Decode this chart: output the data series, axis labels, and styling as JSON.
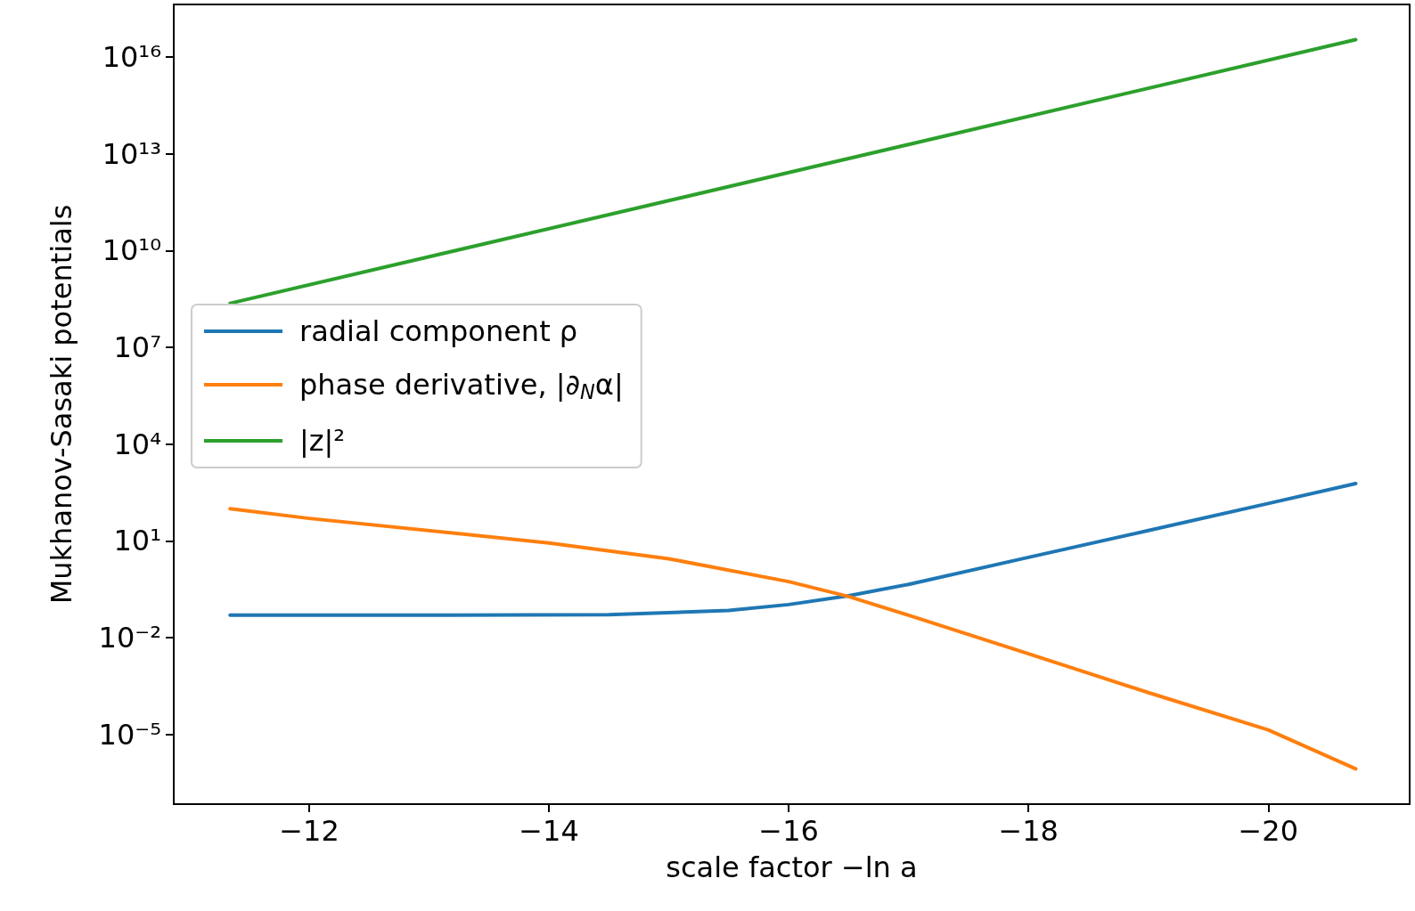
{
  "chart_data": {
    "type": "line",
    "xlabel": "scale factor −ln a",
    "ylabel": "Mukhanov-Sasaki potentials",
    "series": [
      {
        "name": "radial component ρ",
        "color": "#1f77b4",
        "x": [
          -11.34,
          -13,
          -14.5,
          -15.5,
          -16,
          -16.5,
          -17,
          -18,
          -19,
          -20,
          -20.73
        ],
        "values": [
          0.05,
          0.05,
          0.052,
          0.07,
          0.107,
          0.2,
          0.45,
          3.1,
          21,
          145,
          600
        ]
      },
      {
        "name": "phase derivative, |∂$_{N}$α|",
        "color": "#ff7f0e",
        "x": [
          -11.34,
          -12,
          -14,
          -15,
          -16,
          -16.5,
          -17,
          -18,
          -19,
          -20,
          -20.73
        ],
        "values": [
          100,
          50,
          8.7,
          2.8,
          0.55,
          0.19,
          0.05,
          0.0032,
          0.0002,
          1.4e-05,
          8.7e-07
        ]
      },
      {
        "name": "|z|²",
        "color": "#2ca02c",
        "x": [
          -11.34,
          -16,
          -20.73
        ],
        "values": [
          230000000.0,
          2600000000000.0,
          3.4e+16
        ]
      }
    ],
    "xlim": [
      -10.87,
      -21.18
    ],
    "xticks": [
      {
        "value": -12,
        "label": "−12"
      },
      {
        "value": -14,
        "label": "−14"
      },
      {
        "value": -16,
        "label": "−16"
      },
      {
        "value": -18,
        "label": "−18"
      },
      {
        "value": -20,
        "label": "−20"
      }
    ],
    "ylim": [
      7e-08,
      4.2e+17
    ],
    "log": true,
    "yticks": [
      {
        "value": 1e-05,
        "label": "10⁻⁵"
      },
      {
        "value": 0.01,
        "label": "10⁻²"
      },
      {
        "value": 10,
        "label": "10¹"
      },
      {
        "value": 10000.0,
        "label": "10⁴"
      },
      {
        "value": 10000000.0,
        "label": "10⁷"
      },
      {
        "value": 10000000000.0,
        "label": "10¹⁰"
      },
      {
        "value": 10000000000000.0,
        "label": "10¹³"
      },
      {
        "value": 1e+16,
        "label": "10¹⁶"
      }
    ],
    "grid": false,
    "legend": "center left",
    "marker": "none",
    "line_style": "solid"
  }
}
